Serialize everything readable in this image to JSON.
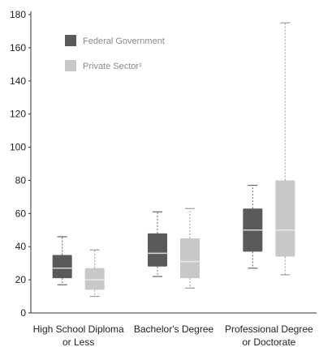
{
  "chart_data": {
    "type": "boxplot",
    "title": "",
    "xlabel": "",
    "ylabel": "",
    "ylim": [
      0,
      180
    ],
    "yticks": [
      0,
      20,
      40,
      60,
      80,
      100,
      120,
      140,
      160,
      180
    ],
    "grid": false,
    "legend_position": "top-left",
    "categories": [
      [
        "High School Diploma",
        "or Less"
      ],
      [
        "Bachelor's Degree"
      ],
      [
        "Professional Degree",
        "or Doctorate"
      ]
    ],
    "series": [
      {
        "name": "Federal Government",
        "color": "#5a5a5a",
        "boxes": [
          {
            "whisker_low": 17,
            "q1": 21,
            "median": 27,
            "q3": 35,
            "whisker_high": 46
          },
          {
            "whisker_low": 22,
            "q1": 28,
            "median": 36,
            "q3": 48,
            "whisker_high": 61
          },
          {
            "whisker_low": 27,
            "q1": 37,
            "median": 50,
            "q3": 63,
            "whisker_high": 77
          }
        ]
      },
      {
        "name": "Private Sector¹",
        "color": "#c8c8c8",
        "boxes": [
          {
            "whisker_low": 10,
            "q1": 14,
            "median": 20,
            "q3": 27,
            "whisker_high": 38
          },
          {
            "whisker_low": 15,
            "q1": 21,
            "median": 31,
            "q3": 45,
            "whisker_high": 63
          },
          {
            "whisker_low": 23,
            "q1": 34,
            "median": 50,
            "q3": 80,
            "whisker_high": 175
          }
        ]
      }
    ]
  }
}
